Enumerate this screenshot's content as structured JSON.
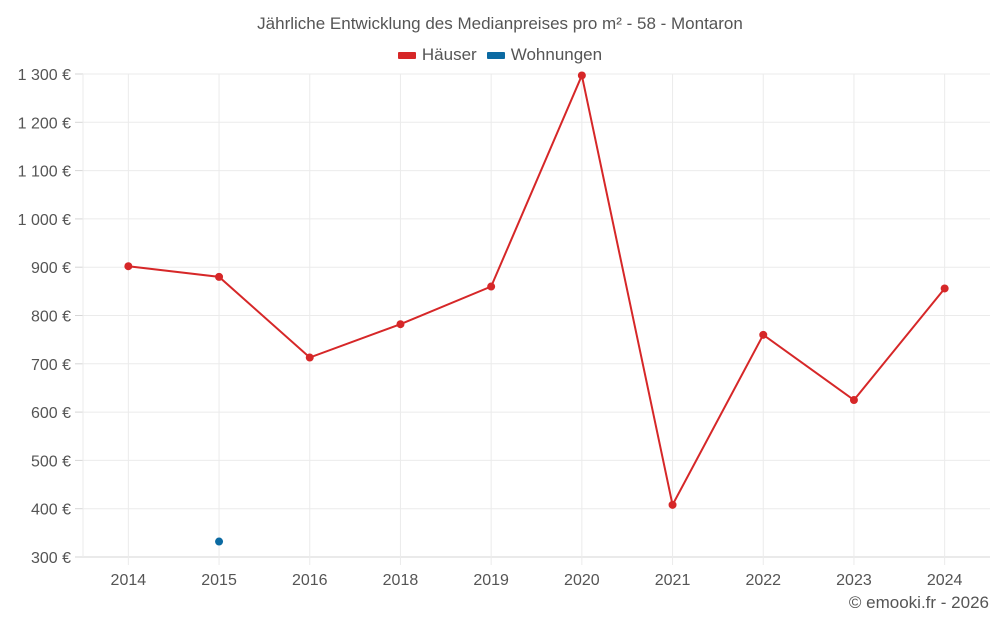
{
  "chart_data": {
    "type": "line",
    "title": "Jährliche Entwicklung des Medianpreises pro m² - 58 - Montaron",
    "xlabel": "",
    "ylabel": "",
    "categories": [
      "2014",
      "2015",
      "2016",
      "2018",
      "2019",
      "2020",
      "2021",
      "2022",
      "2023",
      "2024"
    ],
    "series": [
      {
        "name": "Häuser",
        "color": "#d62728",
        "values": [
          902,
          880,
          713,
          782,
          860,
          1297,
          408,
          760,
          625,
          856
        ]
      },
      {
        "name": "Wohnungen",
        "color": "#0b6aa2",
        "values": [
          null,
          332,
          null,
          null,
          null,
          null,
          null,
          null,
          null,
          null
        ]
      }
    ],
    "yticks": [
      300,
      400,
      500,
      600,
      700,
      800,
      900,
      1000,
      1100,
      1200,
      1300
    ],
    "ytick_labels": [
      "300 €",
      "400 €",
      "500 €",
      "600 €",
      "700 €",
      "800 €",
      "900 €",
      "1 000 €",
      "1 100 €",
      "1 200 €",
      "1 300 €"
    ],
    "ylim": [
      300,
      1300
    ],
    "grid": true,
    "legend_position": "top"
  },
  "legend": [
    {
      "label": "Häuser",
      "color": "#d62728"
    },
    {
      "label": "Wohnungen",
      "color": "#0b6aa2"
    }
  ],
  "credit": "© emooki.fr - 2026"
}
